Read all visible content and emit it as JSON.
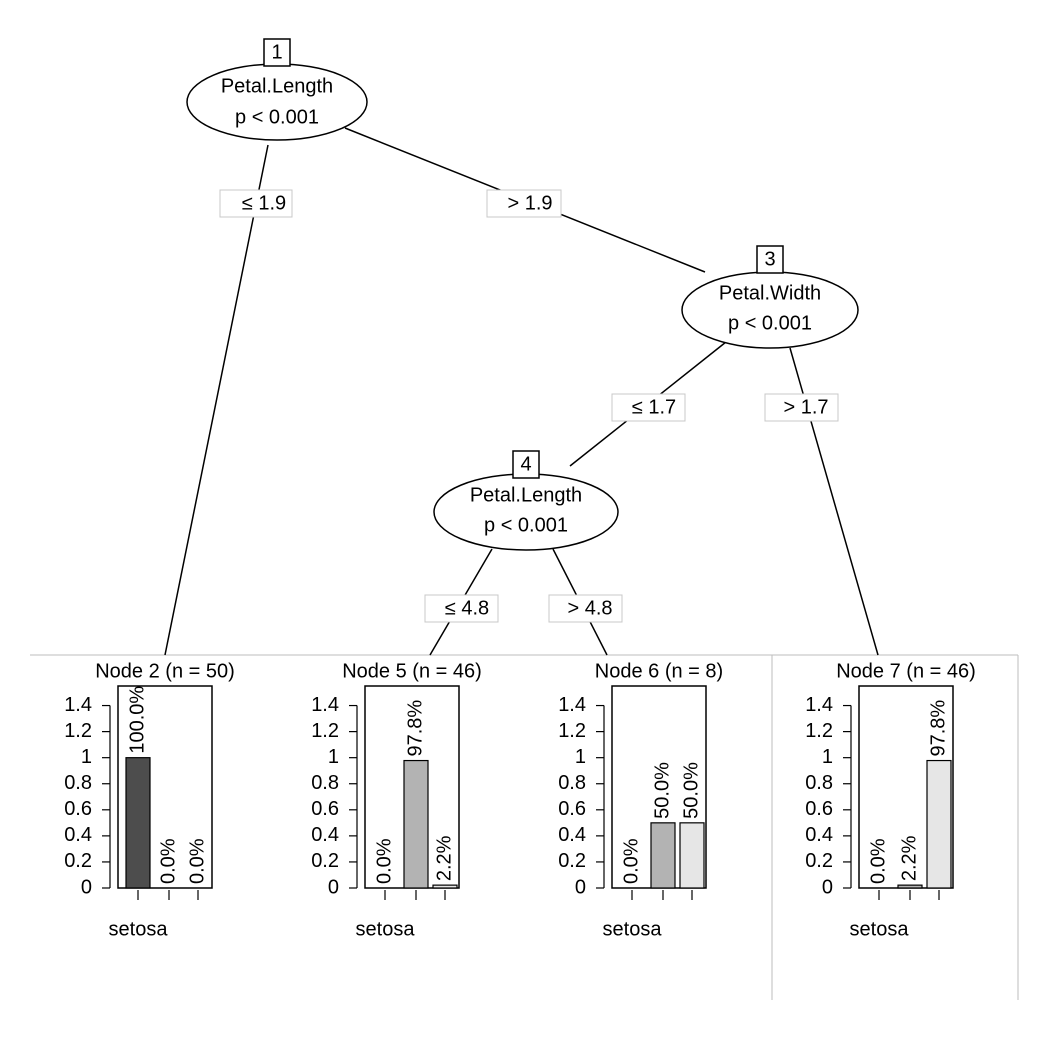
{
  "tree": {
    "nodes": [
      {
        "id": "1",
        "variable": "Petal.Length",
        "p": "p < 0.001"
      },
      {
        "id": "3",
        "variable": "Petal.Width",
        "p": "p < 0.001"
      },
      {
        "id": "4",
        "variable": "Petal.Length",
        "p": "p < 0.001"
      }
    ],
    "edges": [
      "≤ 1.9",
      "> 1.9",
      "≤ 1.7",
      "> 1.7",
      "≤ 4.8",
      "> 4.8"
    ]
  },
  "chart_data": [
    {
      "type": "bar",
      "title": "Node 2 (n = 50)",
      "categories": [
        "setosa",
        null,
        null
      ],
      "values": [
        1,
        0,
        0
      ],
      "value_labels": [
        "100.0%",
        "0.0%",
        "0.0%"
      ],
      "colors": [
        "#4d4d4d",
        "#b3b3b3",
        "#e6e6e6"
      ],
      "ylim": [
        0,
        1.55
      ],
      "yticks": [
        0,
        0.2,
        0.4,
        0.6,
        0.8,
        1,
        1.2,
        1.4
      ]
    },
    {
      "type": "bar",
      "title": "Node 5 (n = 46)",
      "categories": [
        "setosa",
        null,
        null
      ],
      "values": [
        0,
        0.978,
        0.022
      ],
      "value_labels": [
        "0.0%",
        "97.8%",
        "2.2%"
      ],
      "colors": [
        "#4d4d4d",
        "#b3b3b3",
        "#e6e6e6"
      ],
      "ylim": [
        0,
        1.55
      ],
      "yticks": [
        0,
        0.2,
        0.4,
        0.6,
        0.8,
        1,
        1.2,
        1.4
      ]
    },
    {
      "type": "bar",
      "title": "Node 6 (n = 8)",
      "categories": [
        "setosa",
        null,
        null
      ],
      "values": [
        0,
        0.5,
        0.5
      ],
      "value_labels": [
        "0.0%",
        "50.0%",
        "50.0%"
      ],
      "colors": [
        "#4d4d4d",
        "#b3b3b3",
        "#e6e6e6"
      ],
      "ylim": [
        0,
        1.55
      ],
      "yticks": [
        0,
        0.2,
        0.4,
        0.6,
        0.8,
        1,
        1.2,
        1.4
      ]
    },
    {
      "type": "bar",
      "title": "Node 7 (n = 46)",
      "categories": [
        "setosa",
        null,
        null
      ],
      "values": [
        0,
        0.022,
        0.978
      ],
      "value_labels": [
        "0.0%",
        "2.2%",
        "97.8%"
      ],
      "colors": [
        "#4d4d4d",
        "#b3b3b3",
        "#e6e6e6"
      ],
      "ylim": [
        0,
        1.55
      ],
      "yticks": [
        0,
        0.2,
        0.4,
        0.6,
        0.8,
        1,
        1.2,
        1.4
      ]
    }
  ]
}
